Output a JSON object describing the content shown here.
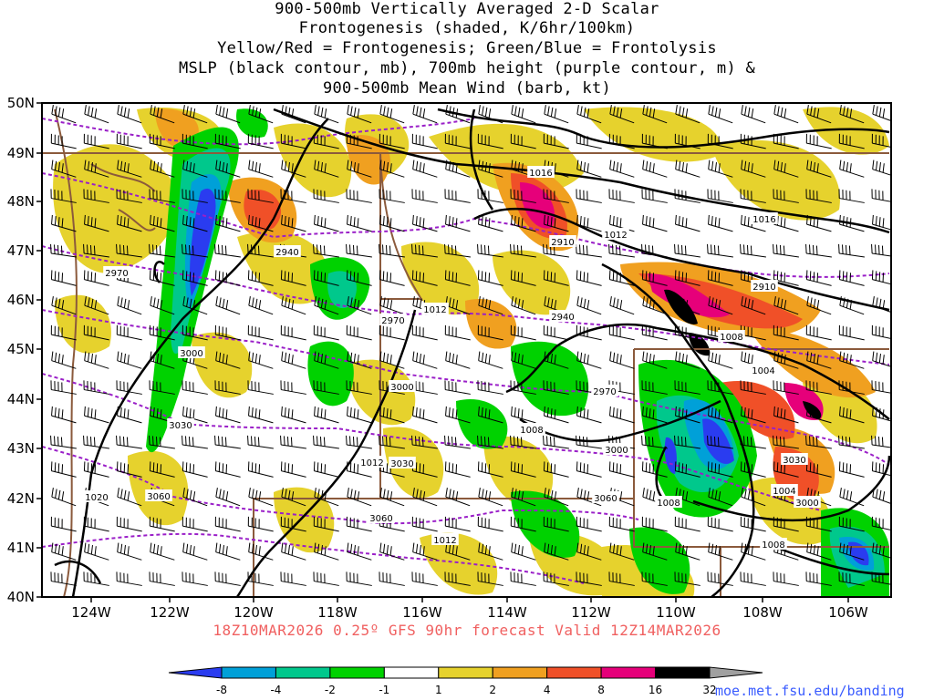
{
  "title_lines": [
    "900-500mb Vertically Averaged 2-D Scalar",
    "Frontogenesis (shaded, K/6hr/100km)",
    "Yellow/Red = Frontogenesis;  Green/Blue = Frontolysis",
    "MSLP (black contour, mb), 700mb height (purple contour, m) &",
    "900-500mb Mean Wind (barb, kt)"
  ],
  "subtitle": "18Z10MAR2026 0.25º GFS 90hr forecast Valid 12Z14MAR2026",
  "credit": "moe.met.fsu.edu/banding",
  "lat_labels": [
    "50N",
    "49N",
    "48N",
    "47N",
    "46N",
    "45N",
    "44N",
    "43N",
    "42N",
    "41N",
    "40N"
  ],
  "lon_labels": [
    "124W",
    "122W",
    "120W",
    "118W",
    "116W",
    "114W",
    "112W",
    "110W",
    "108W",
    "106W"
  ],
  "mslp_labels": [
    "1020",
    "1016",
    "1016",
    "1012",
    "1012",
    "1012",
    "1012",
    "1008",
    "1008",
    "1008",
    "1008",
    "1004",
    "1004"
  ],
  "height_labels": [
    "2940",
    "2910",
    "2910",
    "2940",
    "2970",
    "2970",
    "2970",
    "3000",
    "3000",
    "3000",
    "3000",
    "3030",
    "3030",
    "3030",
    "3060",
    "3060",
    "3060"
  ],
  "colorbar": {
    "labels": [
      "-8",
      "-4",
      "-2",
      "-1",
      "1",
      "2",
      "4",
      "8",
      "16",
      "32"
    ],
    "colors": [
      "#2a3cf0",
      "#00a0d8",
      "#00c88c",
      "#00d200",
      "#ffffff",
      "#e6d22d",
      "#f0a020",
      "#f05028",
      "#e6007a",
      "#000000",
      "#a0a0a0"
    ]
  },
  "colors": {
    "mslp": "#000000",
    "height": "#9a1fc8",
    "border": "#8b5a3c",
    "subtitle": "#f06060",
    "credit": "#3a5cff"
  }
}
